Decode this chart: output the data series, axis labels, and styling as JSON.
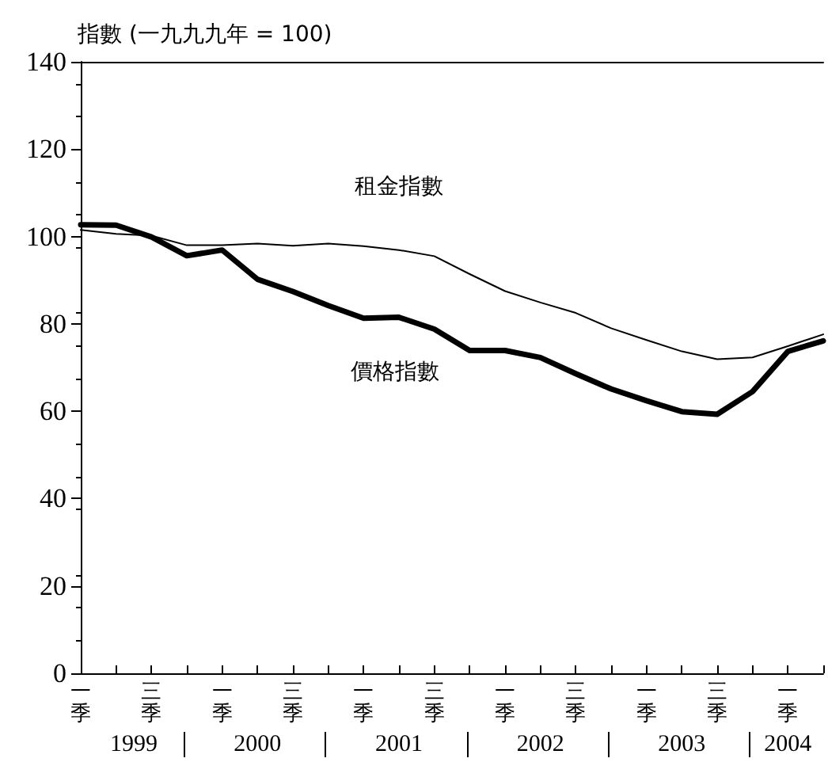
{
  "chart_data": {
    "type": "line",
    "ylabel": "指數 (一九九九年 = 100)",
    "categories": [
      "一季",
      null,
      "三季",
      null,
      "一季",
      null,
      "三季",
      null,
      "一季",
      null,
      "三季",
      null,
      "一季",
      null,
      "三季",
      null,
      "一季",
      null,
      "三季",
      null,
      "一季",
      null
    ],
    "series": [
      {
        "name": "租金指數",
        "color": "#000000",
        "values": [
          101.5,
          100.6,
          100.2,
          98.0,
          98.0,
          98.4,
          97.9,
          98.4,
          97.8,
          96.9,
          95.5,
          91.4,
          87.5,
          84.9,
          82.5,
          79.0,
          76.3,
          73.7,
          71.9,
          72.3,
          74.9,
          77.6
        ]
      },
      {
        "name": "價格指數",
        "color": "#000000",
        "values": [
          102.7,
          102.6,
          99.9,
          95.6,
          96.9,
          90.2,
          87.4,
          84.2,
          81.3,
          81.5,
          78.8,
          73.9,
          73.9,
          72.3,
          68.6,
          65.1,
          62.4,
          59.9,
          59.3,
          64.5,
          73.7,
          76.1
        ]
      }
    ],
    "ylim": [
      0,
      140
    ],
    "yticks": [
      0,
      20,
      40,
      60,
      80,
      100,
      120,
      140
    ],
    "grid": false,
    "legend": false,
    "marker": "none",
    "line_style": "solid",
    "annotations": [
      "1999",
      "2000",
      "2001",
      "2002",
      "2003",
      "2004"
    ]
  }
}
